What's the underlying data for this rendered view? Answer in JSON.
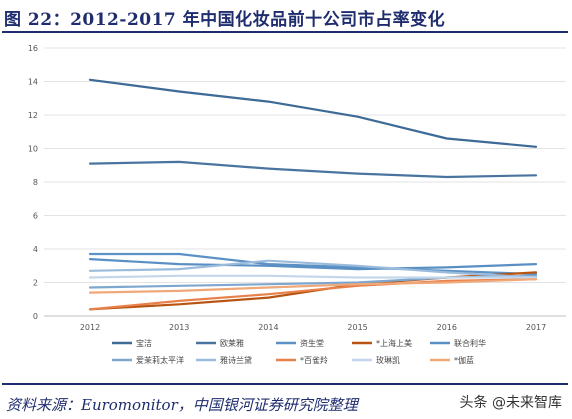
{
  "page": {
    "title": "图 22：2012-2017 年中国化妆品前十公司市占率变化",
    "source": "资料来源：Euromonitor，中国银河证券研究院整理",
    "watermark": "头条 @未来智库"
  },
  "chart_data": {
    "type": "line",
    "x": [
      "2012",
      "2013",
      "2014",
      "2015",
      "2016",
      "2017"
    ],
    "ylim": [
      0,
      16
    ],
    "yticks": [
      0,
      2,
      4,
      6,
      8,
      10,
      12,
      14,
      16
    ],
    "grid": true,
    "legend_position": "bottom",
    "series": [
      {
        "name": "宝洁",
        "color": "#3d6a96",
        "values": [
          14.1,
          13.4,
          12.8,
          11.9,
          10.6,
          10.1
        ]
      },
      {
        "name": "欧莱雅",
        "color": "#4a74a0",
        "values": [
          9.1,
          9.2,
          8.8,
          8.5,
          8.3,
          8.4
        ]
      },
      {
        "name": "资生堂",
        "color": "#5b91c4",
        "values": [
          3.7,
          3.7,
          3.1,
          2.9,
          2.7,
          2.5
        ]
      },
      {
        "name": "*上海上美",
        "color": "#b85412",
        "values": [
          0.4,
          0.7,
          1.1,
          1.9,
          2.3,
          2.6
        ]
      },
      {
        "name": "联合利华",
        "color": "#5a8fc3",
        "values": [
          3.4,
          3.1,
          3.0,
          2.8,
          2.9,
          3.1
        ]
      },
      {
        "name": "爱茉莉太平洋",
        "color": "#7ea7d0",
        "values": [
          1.7,
          1.8,
          1.9,
          2.0,
          2.3,
          2.4
        ]
      },
      {
        "name": "雅诗兰黛",
        "color": "#9bbbdc",
        "values": [
          2.7,
          2.8,
          3.3,
          3.0,
          2.6,
          2.3
        ]
      },
      {
        "name": "*百雀羚",
        "color": "#e8804a",
        "values": [
          0.4,
          0.9,
          1.3,
          1.8,
          2.1,
          2.2
        ]
      },
      {
        "name": "玫琳凯",
        "color": "#c4d6ea",
        "values": [
          2.3,
          2.4,
          2.4,
          2.3,
          2.3,
          2.3
        ]
      },
      {
        "name": "*伽蓝",
        "color": "#f0a878",
        "values": [
          1.4,
          1.5,
          1.7,
          1.9,
          2.0,
          2.2
        ]
      }
    ]
  }
}
